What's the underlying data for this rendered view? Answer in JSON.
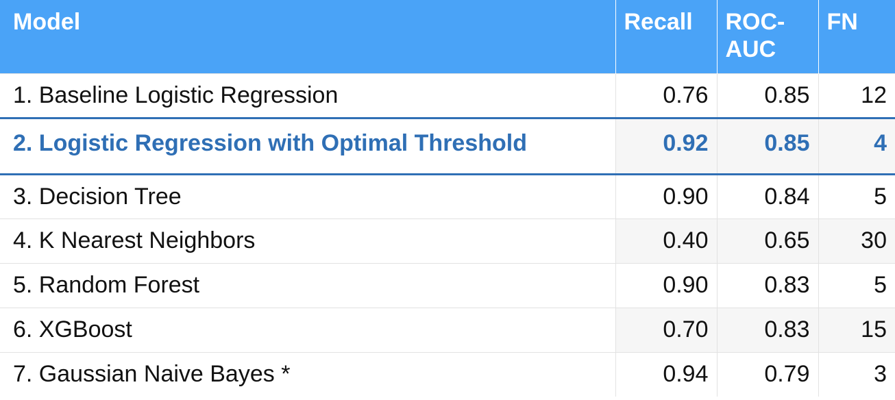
{
  "table": {
    "headers": {
      "model": "Model",
      "recall": "Recall",
      "roc_line1": "ROC-",
      "roc_line2": "AUC",
      "fn": "FN"
    },
    "rows": [
      {
        "model": "1. Baseline Logistic Regression",
        "recall": "0.76",
        "roc_auc": "0.85",
        "fn": "12"
      },
      {
        "model": "2. Logistic Regression with Optimal Threshold",
        "recall": "0.92",
        "roc_auc": "0.85",
        "fn": "4"
      },
      {
        "model": "3. Decision Tree",
        "recall": "0.90",
        "roc_auc": "0.84",
        "fn": "5"
      },
      {
        "model": "4. K Nearest Neighbors",
        "recall": "0.40",
        "roc_auc": "0.65",
        "fn": "30"
      },
      {
        "model": "5. Random Forest",
        "recall": "0.90",
        "roc_auc": "0.83",
        "fn": "5"
      },
      {
        "model": "6. XGBoost",
        "recall": "0.70",
        "roc_auc": "0.83",
        "fn": "15"
      },
      {
        "model": "7. Gaussian Naive Bayes *",
        "recall": "0.94",
        "roc_auc": "0.79",
        "fn": "3"
      }
    ]
  },
  "colors": {
    "header_bg": "#4aa3f7",
    "highlight_text": "#2f6fb5"
  }
}
